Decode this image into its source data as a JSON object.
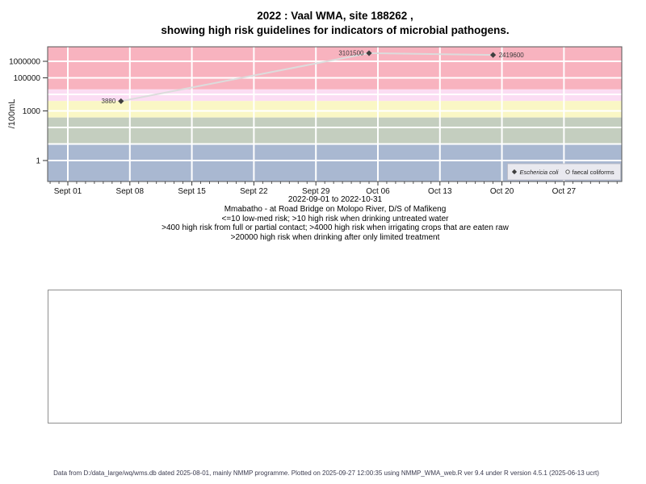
{
  "title": {
    "line1": "2022 : Vaal WMA, site 188262 ,",
    "line2": "showing high risk guidelines for indicators of microbial pathogens."
  },
  "chart_data": {
    "type": "scatter",
    "title": "2022 : Vaal WMA, site 188262 , showing high risk guidelines for indicators of microbial pathogens.",
    "ylabel": "/100mL",
    "xlabel": "2022-09-01 to 2022-10-31",
    "y_scale": "log10",
    "ylim": [
      0.06,
      7000000
    ],
    "x_start_date_label": "Sept 01",
    "y_ticks": [
      {
        "value": 1,
        "label": "1"
      },
      {
        "value": 1000,
        "label": "1000"
      },
      {
        "value": 100000,
        "label": "100000"
      },
      {
        "value": 1000000,
        "label": "1000000"
      }
    ],
    "x_ticks": [
      {
        "day": 0,
        "label": "Sept 01"
      },
      {
        "day": 7,
        "label": "Sept 08"
      },
      {
        "day": 14,
        "label": "Sept 15"
      },
      {
        "day": 21,
        "label": "Sept 22"
      },
      {
        "day": 28,
        "label": "Sept 29"
      },
      {
        "day": 35,
        "label": "Oct 06"
      },
      {
        "day": 42,
        "label": "Oct 13"
      },
      {
        "day": 49,
        "label": "Oct 20"
      },
      {
        "day": 56,
        "label": "Oct 27"
      }
    ],
    "grid_on": true,
    "grid_color": "#ffffff",
    "grid_decades": [
      1,
      10,
      100,
      1000,
      10000,
      100000,
      1000000
    ],
    "risk_bands": [
      {
        "range": "above-20000",
        "from": 20000,
        "to": null,
        "color": "#f8b3bf"
      },
      {
        "range": "4000-20000",
        "from": 4000,
        "to": 20000,
        "color": "#fbddf3"
      },
      {
        "range": "400-4000",
        "from": 400,
        "to": 4000,
        "color": "#faf7c5"
      },
      {
        "range": "10-400",
        "from": 10,
        "to": 400,
        "color": "#c4cebf"
      },
      {
        "range": "below-10",
        "from": null,
        "to": 10,
        "color": "#a9b8d1"
      }
    ],
    "series": [
      {
        "name": "Eschericia coli",
        "marker": "filled-diamond",
        "marker_color": "#3f3f3f",
        "line_color": "#dcdcdc",
        "points": [
          {
            "day": 6,
            "value": 3880,
            "label": "3880",
            "label_side": "left"
          },
          {
            "day": 34,
            "value": 3101500,
            "label": "3101500",
            "label_side": "left"
          },
          {
            "day": 48,
            "value": 2419600,
            "label": "2419600",
            "label_side": "right"
          }
        ]
      },
      {
        "name": "faecal coliforms",
        "marker": "open-circle",
        "marker_color": "#444444",
        "line_color": "#dcdcdc",
        "points": []
      }
    ],
    "legend": {
      "position": "bottom-right",
      "background": "#e9e9ef",
      "entries": [
        {
          "label": "Eschericia coli",
          "marker": "filled-diamond",
          "italic": true
        },
        {
          "label": "faecal coliforms",
          "marker": "open-circle",
          "italic": false
        }
      ]
    }
  },
  "captions": [
    "Mmabatho - at Road Bridge on Molopo River, D/S of Mafikeng",
    "<=10 low-med risk; >10 high risk when drinking untreated water",
    ">400 high risk from full or partial contact; >4000 high risk when irrigating crops that are eaten raw",
    ">20000 high risk when drinking after only limited treatment"
  ],
  "footer": {
    "text": "Data from D:/data_large/wq/wms.db dated 2025-08-01, mainly NMMP programme. Plotted on 2025-09-27 12:00:35 using NMMP_WMA_web.R ver 9.4 under R version 4.5.1 (2025-06-13 ucrt)"
  }
}
